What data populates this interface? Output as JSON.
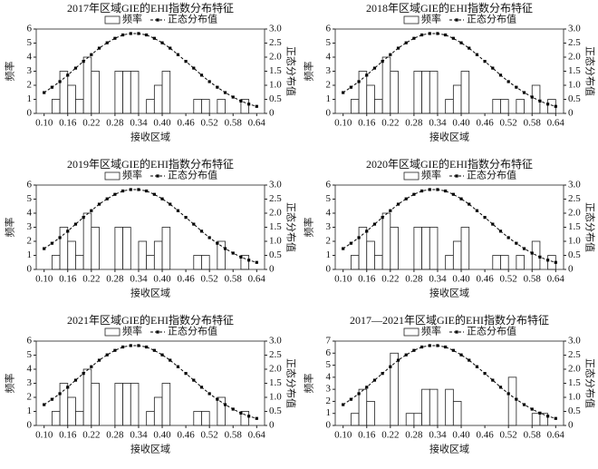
{
  "chart_data": [
    {
      "type": "histogram",
      "title": "2017年区域GIE的EHI指数分布特征",
      "x_label": "接收区域",
      "y_label": "频率",
      "y2_label": "正态分布值",
      "legend": "upper center",
      "bins": [
        0.12,
        0.14,
        0.16,
        0.18,
        0.2,
        0.22,
        0.24,
        0.26,
        0.28,
        0.3,
        0.32,
        0.34,
        0.36,
        0.38,
        0.4,
        0.42,
        0.44,
        0.46,
        0.48,
        0.5,
        0.52,
        0.54,
        0.56,
        0.58,
        0.6,
        0.62,
        0.64
      ],
      "series": [
        {
          "name": "频率",
          "color": "#ffffff",
          "values": [
            1,
            3,
            2,
            1,
            4,
            3,
            0,
            0,
            3,
            3,
            3,
            0,
            1,
            2,
            3,
            0,
            0,
            0,
            1,
            1,
            0,
            1,
            0,
            0,
            1,
            0
          ]
        },
        {
          "name": "正态分布值",
          "color": "#000000",
          "axis": "y2",
          "x": [
            0.1,
            0.12,
            0.14,
            0.16,
            0.18,
            0.2,
            0.22,
            0.24,
            0.26,
            0.28,
            0.3,
            0.32,
            0.34,
            0.36,
            0.38,
            0.4,
            0.42,
            0.44,
            0.46,
            0.48,
            0.5,
            0.52,
            0.54,
            0.56,
            0.58,
            0.6,
            0.62,
            0.64
          ],
          "values": [
            0.74,
            0.93,
            1.13,
            1.36,
            1.61,
            1.85,
            2.09,
            2.32,
            2.51,
            2.67,
            2.79,
            2.84,
            2.84,
            2.79,
            2.67,
            2.51,
            2.32,
            2.09,
            1.85,
            1.61,
            1.36,
            1.13,
            0.93,
            0.74,
            0.58,
            0.44,
            0.33,
            0.25
          ]
        }
      ],
      "xlim": [
        0.08,
        0.66
      ],
      "xticks": [
        {
          "value": 0.1,
          "label": "0.10"
        },
        0.16,
        0.22,
        0.28,
        0.34,
        {
          "value": 0.4,
          "label": "0.40"
        },
        0.46,
        0.52,
        0.58,
        0.64
      ],
      "ylim": [
        0,
        6
      ],
      "yticks": [
        0,
        1,
        2,
        3,
        4,
        5,
        6
      ],
      "y2lim": [
        0,
        3
      ],
      "y2ticks": [
        0,
        0.5,
        {
          "value": 1,
          "label": "1.0"
        },
        1.5,
        {
          "value": 2,
          "label": "2.0"
        },
        2.5,
        {
          "value": 3,
          "label": "3.0"
        }
      ]
    },
    {
      "type": "histogram",
      "title": "2018年区域GIE的EHI指数分布特征",
      "x_label": "接收区域",
      "y_label": "频率",
      "y2_label": "正态分布值",
      "legend": "upper center",
      "bins": [
        0.12,
        0.14,
        0.16,
        0.18,
        0.2,
        0.22,
        0.24,
        0.26,
        0.28,
        0.3,
        0.32,
        0.34,
        0.36,
        0.38,
        0.4,
        0.42,
        0.44,
        0.46,
        0.48,
        0.5,
        0.52,
        0.54,
        0.56,
        0.58,
        0.6,
        0.62,
        0.64
      ],
      "series": [
        {
          "name": "频率",
          "color": "#ffffff",
          "values": [
            1,
            3,
            2,
            1,
            4,
            3,
            0,
            0,
            3,
            3,
            3,
            0,
            1,
            2,
            3,
            0,
            0,
            0,
            1,
            1,
            0,
            1,
            0,
            2,
            0,
            1
          ]
        },
        {
          "name": "正态分布值",
          "color": "#000000",
          "axis": "y2",
          "x": [
            0.1,
            0.12,
            0.14,
            0.16,
            0.18,
            0.2,
            0.22,
            0.24,
            0.26,
            0.28,
            0.3,
            0.32,
            0.34,
            0.36,
            0.38,
            0.4,
            0.42,
            0.44,
            0.46,
            0.48,
            0.5,
            0.52,
            0.54,
            0.56,
            0.58,
            0.6,
            0.62,
            0.64
          ],
          "values": [
            0.74,
            0.93,
            1.13,
            1.36,
            1.61,
            1.85,
            2.09,
            2.32,
            2.51,
            2.67,
            2.79,
            2.84,
            2.84,
            2.79,
            2.67,
            2.51,
            2.32,
            2.09,
            1.85,
            1.61,
            1.36,
            1.13,
            0.93,
            0.74,
            0.58,
            0.44,
            0.33,
            0.25
          ]
        }
      ],
      "xlim": [
        0.08,
        0.66
      ],
      "xticks": [
        {
          "value": 0.1,
          "label": "0.10"
        },
        0.16,
        0.22,
        0.28,
        0.34,
        {
          "value": 0.4,
          "label": "0.40"
        },
        0.46,
        0.52,
        0.58,
        0.64
      ],
      "ylim": [
        0,
        6
      ],
      "yticks": [
        0,
        1,
        2,
        3,
        4,
        5,
        6
      ],
      "y2lim": [
        0,
        3
      ],
      "y2ticks": [
        0,
        0.5,
        {
          "value": 1,
          "label": "1.0"
        },
        1.5,
        {
          "value": 2,
          "label": "2.0"
        },
        2.5,
        {
          "value": 3,
          "label": "3.0"
        }
      ]
    },
    {
      "type": "histogram",
      "title": "2019年区域GIE的EHI指数分布特征",
      "x_label": "接收区域",
      "y_label": "频率",
      "y2_label": "正态分布值",
      "legend": "upper center",
      "bins": [
        0.12,
        0.14,
        0.16,
        0.18,
        0.2,
        0.22,
        0.24,
        0.26,
        0.28,
        0.3,
        0.32,
        0.34,
        0.36,
        0.38,
        0.4,
        0.42,
        0.44,
        0.46,
        0.48,
        0.5,
        0.52,
        0.54,
        0.56,
        0.58,
        0.6,
        0.62,
        0.64
      ],
      "series": [
        {
          "name": "频率",
          "color": "#ffffff",
          "values": [
            1,
            3,
            2,
            1,
            4,
            3,
            0,
            0,
            3,
            3,
            0,
            2,
            1,
            2,
            3,
            0,
            0,
            0,
            1,
            1,
            0,
            2,
            0,
            0,
            1,
            0
          ]
        },
        {
          "name": "正态分布值",
          "color": "#000000",
          "axis": "y2",
          "x": [
            0.1,
            0.12,
            0.14,
            0.16,
            0.18,
            0.2,
            0.22,
            0.24,
            0.26,
            0.28,
            0.3,
            0.32,
            0.34,
            0.36,
            0.38,
            0.4,
            0.42,
            0.44,
            0.46,
            0.48,
            0.5,
            0.52,
            0.54,
            0.56,
            0.58,
            0.6,
            0.62,
            0.64
          ],
          "values": [
            0.74,
            0.93,
            1.13,
            1.36,
            1.61,
            1.85,
            2.09,
            2.32,
            2.51,
            2.67,
            2.79,
            2.84,
            2.84,
            2.79,
            2.67,
            2.51,
            2.32,
            2.09,
            1.85,
            1.61,
            1.36,
            1.13,
            0.93,
            0.74,
            0.58,
            0.44,
            0.33,
            0.25
          ]
        }
      ],
      "xlim": [
        0.08,
        0.66
      ],
      "xticks": [
        {
          "value": 0.1,
          "label": "0.10"
        },
        0.16,
        0.22,
        0.28,
        0.34,
        {
          "value": 0.4,
          "label": "0.40"
        },
        0.46,
        0.52,
        0.58,
        0.64
      ],
      "ylim": [
        0,
        6
      ],
      "yticks": [
        0,
        1,
        2,
        3,
        4,
        5,
        6
      ],
      "y2lim": [
        0,
        3
      ],
      "y2ticks": [
        0,
        0.5,
        {
          "value": 1,
          "label": "1.0"
        },
        1.5,
        {
          "value": 2,
          "label": "2.0"
        },
        2.5,
        {
          "value": 3,
          "label": "3.0"
        }
      ]
    },
    {
      "type": "histogram",
      "title": "2020年区域GIE的EHI指数分布特征",
      "x_label": "接收区域",
      "y_label": "频率",
      "y2_label": "正态分布值",
      "legend": "upper center",
      "bins": [
        0.12,
        0.14,
        0.16,
        0.18,
        0.2,
        0.22,
        0.24,
        0.26,
        0.28,
        0.3,
        0.32,
        0.34,
        0.36,
        0.38,
        0.4,
        0.42,
        0.44,
        0.46,
        0.48,
        0.5,
        0.52,
        0.54,
        0.56,
        0.58,
        0.6,
        0.62,
        0.64
      ],
      "series": [
        {
          "name": "频率",
          "color": "#ffffff",
          "values": [
            1,
            3,
            2,
            1,
            4,
            3,
            0,
            0,
            3,
            3,
            3,
            0,
            1,
            2,
            3,
            0,
            0,
            0,
            1,
            1,
            0,
            1,
            0,
            2,
            0,
            1
          ]
        },
        {
          "name": "正态分布值",
          "color": "#000000",
          "axis": "y2",
          "x": [
            0.1,
            0.12,
            0.14,
            0.16,
            0.18,
            0.2,
            0.22,
            0.24,
            0.26,
            0.28,
            0.3,
            0.32,
            0.34,
            0.36,
            0.38,
            0.4,
            0.42,
            0.44,
            0.46,
            0.48,
            0.5,
            0.52,
            0.54,
            0.56,
            0.58,
            0.6,
            0.62,
            0.64
          ],
          "values": [
            0.74,
            0.93,
            1.13,
            1.36,
            1.61,
            1.85,
            2.09,
            2.32,
            2.51,
            2.67,
            2.79,
            2.84,
            2.84,
            2.79,
            2.67,
            2.51,
            2.32,
            2.09,
            1.85,
            1.61,
            1.36,
            1.13,
            0.93,
            0.74,
            0.58,
            0.44,
            0.33,
            0.25
          ]
        }
      ],
      "xlim": [
        0.08,
        0.66
      ],
      "xticks": [
        {
          "value": 0.1,
          "label": "0.10"
        },
        0.16,
        0.22,
        0.28,
        0.34,
        {
          "value": 0.4,
          "label": "0.40"
        },
        0.46,
        0.52,
        0.58,
        0.64
      ],
      "ylim": [
        0,
        6
      ],
      "yticks": [
        0,
        1,
        2,
        3,
        4,
        5,
        6
      ],
      "y2lim": [
        0,
        3
      ],
      "y2ticks": [
        0,
        0.5,
        {
          "value": 1,
          "label": "1.0"
        },
        1.5,
        {
          "value": 2,
          "label": "2.0"
        },
        2.5,
        {
          "value": 3,
          "label": "3.0"
        }
      ]
    },
    {
      "type": "histogram",
      "title": "2021年区域GIE的EHI指数分布特征",
      "x_label": "接收区域",
      "y_label": "频率",
      "y2_label": "正态分布值",
      "legend": "upper center",
      "bins": [
        0.12,
        0.14,
        0.16,
        0.18,
        0.2,
        0.22,
        0.24,
        0.26,
        0.28,
        0.3,
        0.32,
        0.34,
        0.36,
        0.38,
        0.4,
        0.42,
        0.44,
        0.46,
        0.48,
        0.5,
        0.52,
        0.54,
        0.56,
        0.58,
        0.6,
        0.62,
        0.64
      ],
      "series": [
        {
          "name": "频率",
          "color": "#ffffff",
          "values": [
            1,
            3,
            2,
            1,
            4,
            3,
            0,
            0,
            3,
            3,
            3,
            0,
            1,
            2,
            3,
            0,
            0,
            0,
            1,
            1,
            0,
            2,
            0,
            0,
            1,
            0
          ]
        },
        {
          "name": "正态分布值",
          "color": "#000000",
          "axis": "y2",
          "x": [
            0.1,
            0.12,
            0.14,
            0.16,
            0.18,
            0.2,
            0.22,
            0.24,
            0.26,
            0.28,
            0.3,
            0.32,
            0.34,
            0.36,
            0.38,
            0.4,
            0.42,
            0.44,
            0.46,
            0.48,
            0.5,
            0.52,
            0.54,
            0.56,
            0.58,
            0.6,
            0.62,
            0.64
          ],
          "values": [
            0.74,
            0.93,
            1.13,
            1.36,
            1.61,
            1.85,
            2.09,
            2.32,
            2.51,
            2.67,
            2.79,
            2.84,
            2.84,
            2.79,
            2.67,
            2.51,
            2.32,
            2.09,
            1.85,
            1.61,
            1.36,
            1.13,
            0.93,
            0.74,
            0.58,
            0.44,
            0.33,
            0.25
          ]
        }
      ],
      "xlim": [
        0.08,
        0.66
      ],
      "xticks": [
        {
          "value": 0.1,
          "label": "0.10"
        },
        0.16,
        0.22,
        0.28,
        0.34,
        {
          "value": 0.4,
          "label": "0.40"
        },
        0.46,
        0.52,
        0.58,
        0.64
      ],
      "ylim": [
        0,
        6
      ],
      "yticks": [
        0,
        1,
        2,
        3,
        4,
        5,
        6
      ],
      "y2lim": [
        0,
        3
      ],
      "y2ticks": [
        0,
        0.5,
        {
          "value": 1,
          "label": "1.0"
        },
        1.5,
        {
          "value": 2,
          "label": "2.0"
        },
        2.5,
        {
          "value": 3,
          "label": "3.0"
        }
      ]
    },
    {
      "type": "histogram",
      "title": "2017—2021年区域GIE的EHI指数分布特征",
      "x_label": "接收区域",
      "y_label": "频率",
      "y2_label": "正态分布值",
      "legend": "upper center",
      "bins": [
        0.12,
        0.14,
        0.16,
        0.18,
        0.2,
        0.22,
        0.24,
        0.26,
        0.28,
        0.3,
        0.32,
        0.34,
        0.36,
        0.38,
        0.4,
        0.42,
        0.44,
        0.46,
        0.48,
        0.5,
        0.52,
        0.54,
        0.56,
        0.58,
        0.6,
        0.62,
        0.64
      ],
      "series": [
        {
          "name": "频率",
          "color": "#ffffff",
          "values": [
            1,
            3,
            2,
            0,
            0,
            6,
            0,
            1,
            1,
            3,
            3,
            0,
            3,
            2,
            0,
            0,
            0,
            0,
            0,
            0,
            4,
            0,
            0,
            1,
            1,
            0
          ]
        },
        {
          "name": "正态分布值",
          "color": "#000000",
          "axis": "y2",
          "x": [
            0.1,
            0.12,
            0.14,
            0.16,
            0.18,
            0.2,
            0.22,
            0.24,
            0.26,
            0.28,
            0.3,
            0.32,
            0.34,
            0.36,
            0.38,
            0.4,
            0.42,
            0.44,
            0.46,
            0.48,
            0.5,
            0.52,
            0.54,
            0.56,
            0.58,
            0.6,
            0.62,
            0.64
          ],
          "values": [
            0.74,
            0.93,
            1.13,
            1.36,
            1.61,
            1.85,
            2.09,
            2.32,
            2.51,
            2.67,
            2.79,
            2.84,
            2.84,
            2.79,
            2.67,
            2.51,
            2.32,
            2.09,
            1.85,
            1.61,
            1.36,
            1.13,
            0.93,
            0.74,
            0.58,
            0.44,
            0.33,
            0.25
          ]
        }
      ],
      "xlim": [
        0.08,
        0.66
      ],
      "xticks": [
        {
          "value": 0.1,
          "label": "0.10"
        },
        0.16,
        0.22,
        0.28,
        0.34,
        {
          "value": 0.4,
          "label": "0.40"
        },
        0.46,
        0.52,
        0.58,
        0.64
      ],
      "ylim": [
        0,
        7
      ],
      "yticks": [
        0,
        1,
        2,
        3,
        4,
        5,
        6,
        7
      ],
      "y2lim": [
        0,
        3
      ],
      "y2ticks": [
        0,
        0.5,
        {
          "value": 1,
          "label": "1.0"
        },
        1.5,
        {
          "value": 2,
          "label": "2.0"
        },
        2.5,
        {
          "value": 3,
          "label": "3.0"
        }
      ]
    }
  ]
}
